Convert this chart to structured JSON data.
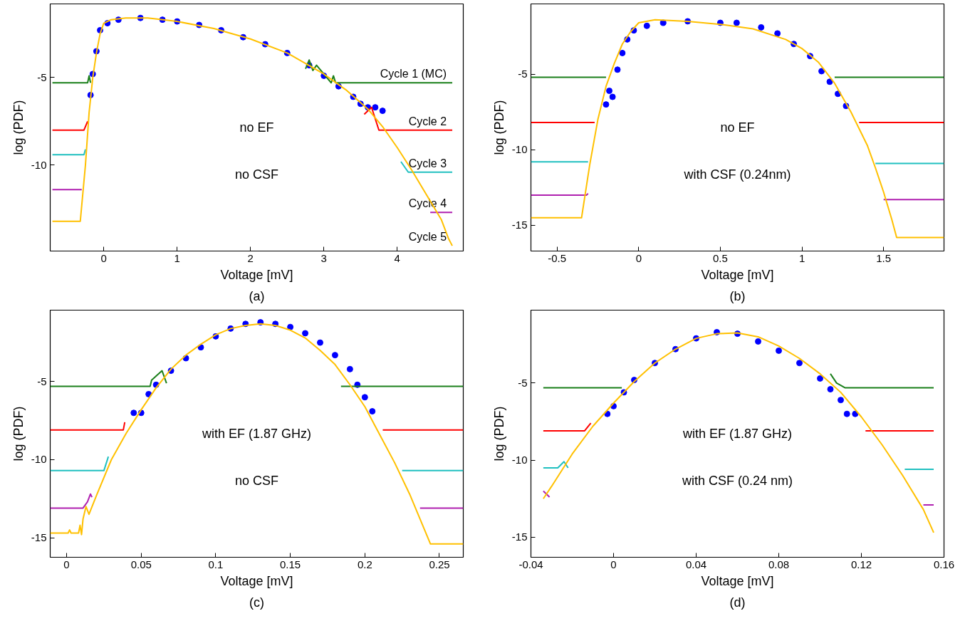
{
  "chart_data": [
    {
      "type": "line",
      "title": "(a)",
      "xlabel": "Voltage [mV]",
      "ylabel": "log (PDF)",
      "annotations": [
        "no EF",
        "no CSF"
      ],
      "xlim": [
        -0.73,
        4.9
      ],
      "ylim": [
        -14.9,
        -0.8
      ],
      "xticks": [
        0,
        1,
        2,
        3,
        4
      ],
      "yticks": [
        -5,
        -10
      ],
      "series": [
        {
          "type": "scatter",
          "marker": "circle",
          "color": "#0000ff",
          "x": [
            -0.18,
            -0.15,
            -0.1,
            -0.05,
            0.05,
            0.2,
            0.5,
            0.8,
            1.0,
            1.3,
            1.6,
            1.9,
            2.2,
            2.5,
            2.8,
            3.0,
            3.2,
            3.4,
            3.5,
            3.6,
            3.7,
            3.8
          ],
          "values": [
            -6,
            -4.8,
            -3.5,
            -2.3,
            -1.9,
            -1.7,
            -1.6,
            -1.7,
            -1.8,
            -2.0,
            -2.3,
            -2.7,
            -3.1,
            -3.6,
            -4.3,
            -4.9,
            -5.5,
            -6.1,
            -6.5,
            -6.7,
            -6.7,
            -6.9
          ]
        },
        {
          "name": "Cycle 1 (MC)",
          "color": "#1a7f1a",
          "x": [
            -0.7,
            -0.22,
            -0.2,
            -0.18,
            1,
            2.75,
            2.8,
            2.85,
            2.9,
            3.1,
            3.13,
            3.16,
            4.75
          ],
          "values": [
            -5.3,
            -5.3,
            -4.9,
            -5.3,
            null,
            -4.5,
            -4.0,
            -4.6,
            -4.3,
            -5.3,
            -4.9,
            -5.3,
            -5.3
          ]
        },
        {
          "name": "Cycle 2",
          "color": "#ff0000",
          "x": [
            -0.7,
            -0.27,
            -0.22,
            1,
            3.55,
            3.65,
            3.75,
            4.75
          ],
          "values": [
            -8,
            -8,
            -7.5,
            null,
            -7.1,
            -6.7,
            -8,
            -8
          ]
        },
        {
          "name": "Cycle 3",
          "color": "#20c0c0",
          "x": [
            -0.7,
            -0.27,
            -0.25,
            1,
            4.05,
            4.15,
            4.75
          ],
          "values": [
            -9.4,
            -9.4,
            -9.1,
            null,
            -9.8,
            -10.4,
            -10.4
          ]
        },
        {
          "name": "Cycle 4",
          "color": "#b020b0",
          "x": [
            -0.7,
            -0.3,
            1,
            4.45,
            4.75
          ],
          "values": [
            -11.4,
            -11.4,
            null,
            -12.7,
            -12.7
          ]
        },
        {
          "name": "Cycle 5",
          "color": "#ffc000",
          "x": [
            -0.7,
            -0.32,
            -0.25,
            -0.2,
            -0.15,
            -0.1,
            -0.05,
            0,
            0.1,
            0.3,
            0.6,
            1,
            1.5,
            2,
            2.5,
            3,
            3.3,
            3.6,
            3.8,
            4,
            4.2,
            4.4,
            4.6,
            4.7,
            4.75
          ],
          "values": [
            -13.2,
            -13.2,
            -10,
            -7,
            -5,
            -3.6,
            -2.5,
            -1.9,
            -1.7,
            -1.6,
            -1.6,
            -1.8,
            -2.2,
            -2.8,
            -3.6,
            -4.8,
            -5.7,
            -6.8,
            -7.8,
            -9,
            -10.3,
            -11.7,
            -13.1,
            -14.2,
            -14.6
          ]
        }
      ]
    },
    {
      "type": "line",
      "title": "(b)",
      "xlabel": "Voltage [mV]",
      "ylabel": "log (PDF)",
      "annotations": [
        "no EF",
        "with CSF (0.24nm)"
      ],
      "xlim": [
        -0.66,
        1.87
      ],
      "ylim": [
        -16.7,
        -0.35
      ],
      "xticks": [
        -0.5,
        0,
        0.5,
        1,
        1.5
      ],
      "yticks": [
        -5,
        -10,
        -15
      ],
      "series": [
        {
          "type": "scatter",
          "marker": "circle",
          "color": "#0000ff",
          "x": [
            -0.2,
            -0.18,
            -0.16,
            -0.13,
            -0.1,
            -0.07,
            -0.03,
            0.05,
            0.15,
            0.3,
            0.5,
            0.6,
            0.75,
            0.85,
            0.95,
            1.05,
            1.12,
            1.17,
            1.22,
            1.27
          ],
          "values": [
            -7,
            -6.1,
            -6.5,
            -4.7,
            -3.6,
            -2.7,
            -2.1,
            -1.8,
            -1.6,
            -1.5,
            -1.6,
            -1.6,
            -1.9,
            -2.3,
            -3,
            -3.8,
            -4.8,
            -5.5,
            -6.3,
            -7.1
          ]
        },
        {
          "color": "#1a7f1a",
          "x": [
            -0.66,
            -0.2,
            0.5,
            1.2,
            1.87
          ],
          "values": [
            -5.2,
            -5.2,
            null,
            -5.2,
            -5.2
          ]
        },
        {
          "color": "#ff0000",
          "x": [
            -0.66,
            -0.27,
            0.5,
            1.35,
            1.87
          ],
          "values": [
            -8.2,
            -8.2,
            null,
            -8.2,
            -8.2
          ]
        },
        {
          "color": "#20c0c0",
          "x": [
            -0.66,
            -0.31,
            0.5,
            1.45,
            1.87
          ],
          "values": [
            -10.8,
            -10.8,
            null,
            -10.9,
            -10.9
          ]
        },
        {
          "color": "#b020b0",
          "x": [
            -0.66,
            -0.32,
            -0.31,
            0.5,
            1.5,
            1.87
          ],
          "values": [
            -13,
            -13,
            -12.9,
            null,
            -13.3,
            -13.3
          ]
        },
        {
          "color": "#ffc000",
          "x": [
            -0.66,
            -0.35,
            -0.3,
            -0.25,
            -0.2,
            -0.15,
            -0.1,
            -0.05,
            0,
            0.1,
            0.3,
            0.5,
            0.7,
            0.9,
            1.0,
            1.1,
            1.2,
            1.3,
            1.4,
            1.45,
            1.5,
            1.55,
            1.58,
            1.87
          ],
          "values": [
            -14.5,
            -14.5,
            -11,
            -8,
            -5.8,
            -4.3,
            -3,
            -2.2,
            -1.6,
            -1.4,
            -1.5,
            -1.7,
            -2,
            -2.7,
            -3.3,
            -4.2,
            -5.6,
            -7.5,
            -9.7,
            -11.2,
            -12.8,
            -14.6,
            -15.8,
            -15.8
          ]
        }
      ]
    },
    {
      "type": "line",
      "title": "(c)",
      "xlabel": "Voltage [mV]",
      "ylabel": "log (PDF)",
      "annotations": [
        "with EF (1.87 GHz)",
        "no CSF"
      ],
      "xlim": [
        -0.011,
        0.266
      ],
      "ylim": [
        -16.25,
        -0.42
      ],
      "xticks": [
        0,
        0.05,
        0.1,
        0.15,
        0.2,
        0.25
      ],
      "yticks": [
        -5,
        -10,
        -15
      ],
      "series": [
        {
          "type": "scatter",
          "marker": "circle",
          "color": "#0000ff",
          "x": [
            0.045,
            0.05,
            0.055,
            0.06,
            0.07,
            0.08,
            0.09,
            0.1,
            0.11,
            0.12,
            0.13,
            0.14,
            0.15,
            0.16,
            0.17,
            0.18,
            0.19,
            0.195,
            0.2,
            0.205
          ],
          "values": [
            -7,
            -7,
            -5.8,
            -5.2,
            -4.3,
            -3.5,
            -2.8,
            -2.1,
            -1.6,
            -1.3,
            -1.2,
            -1.3,
            -1.5,
            -1.9,
            -2.5,
            -3.3,
            -4.2,
            -5.2,
            -6,
            -6.9
          ]
        },
        {
          "color": "#1a7f1a",
          "x": [
            -0.011,
            0.056,
            0.057,
            0.064,
            0.067,
            0.12,
            0.184,
            0.266
          ],
          "values": [
            -5.3,
            -5.3,
            -4.9,
            -4.3,
            -5.1,
            null,
            -5.3,
            -5.3
          ]
        },
        {
          "color": "#ff0000",
          "x": [
            -0.011,
            0.038,
            0.039,
            0.12,
            0.212,
            0.266
          ],
          "values": [
            -8.1,
            -8.1,
            -7.6,
            null,
            -8.1,
            -8.1
          ]
        },
        {
          "color": "#20c0c0",
          "x": [
            -0.011,
            0.025,
            0.028,
            0.12,
            0.225,
            0.266
          ],
          "values": [
            -10.7,
            -10.7,
            -9.8,
            null,
            -10.7,
            -10.7
          ]
        },
        {
          "color": "#b020b0",
          "x": [
            -0.011,
            0.011,
            0.014,
            0.016,
            0.017,
            0.12,
            0.237,
            0.266
          ],
          "values": [
            -13.1,
            -13.1,
            -12.7,
            -12.2,
            -12.4,
            null,
            -13.1,
            -13.1
          ]
        },
        {
          "color": "#ffc000",
          "x": [
            -0.011,
            0.001,
            0.002,
            0.003,
            0.008,
            0.009,
            0.01,
            0.011,
            0.013,
            0.015,
            0.02,
            0.03,
            0.04,
            0.05,
            0.06,
            0.07,
            0.08,
            0.09,
            0.1,
            0.11,
            0.12,
            0.13,
            0.14,
            0.15,
            0.16,
            0.17,
            0.18,
            0.19,
            0.2,
            0.21,
            0.22,
            0.23,
            0.244,
            0.266
          ],
          "values": [
            -14.7,
            -14.7,
            -14.5,
            -14.7,
            -14.7,
            -14.2,
            -14.8,
            -13.8,
            -13,
            -13.5,
            -12.3,
            -10,
            -8.3,
            -6.8,
            -5.4,
            -4.2,
            -3.3,
            -2.6,
            -2,
            -1.6,
            -1.4,
            -1.3,
            -1.4,
            -1.7,
            -2.2,
            -3,
            -3.9,
            -5.2,
            -6.6,
            -8.4,
            -10.2,
            -12.2,
            -15.4,
            -15.4
          ]
        }
      ]
    },
    {
      "type": "line",
      "title": "(d)",
      "xlabel": "Voltage [mV]",
      "ylabel": "log (PDF)",
      "annotations": [
        "with EF (1.87 GHz)",
        "with CSF (0.24 nm)"
      ],
      "xlim": [
        -0.04,
        0.16
      ],
      "ylim": [
        -16.3,
        -0.27
      ],
      "xticks": [
        -0.04,
        0,
        0.04,
        0.08,
        0.12,
        0.16
      ],
      "yticks": [
        -5,
        -10,
        -15
      ],
      "series": [
        {
          "type": "scatter",
          "marker": "circle",
          "color": "#0000ff",
          "x": [
            -0.003,
            0,
            0.005,
            0.01,
            0.02,
            0.03,
            0.04,
            0.05,
            0.06,
            0.07,
            0.08,
            0.09,
            0.1,
            0.105,
            0.11,
            0.113,
            0.117
          ],
          "values": [
            -7,
            -6.5,
            -5.6,
            -4.8,
            -3.7,
            -2.8,
            -2.1,
            -1.7,
            -1.8,
            -2.3,
            -2.9,
            -3.7,
            -4.7,
            -5.4,
            -6.1,
            -7,
            -7
          ]
        },
        {
          "color": "#1a7f1a",
          "x": [
            -0.034,
            0.004,
            0.05,
            0.105,
            0.108,
            0.112,
            0.155
          ],
          "values": [
            -5.3,
            -5.3,
            null,
            -4.4,
            -5.0,
            -5.3,
            -5.3
          ]
        },
        {
          "color": "#ff0000",
          "x": [
            -0.034,
            -0.014,
            -0.011,
            0.05,
            0.122,
            0.155
          ],
          "values": [
            -8.1,
            -8.1,
            -7.6,
            null,
            -8.1,
            -8.1
          ]
        },
        {
          "color": "#20c0c0",
          "x": [
            -0.034,
            -0.027,
            -0.024,
            -0.022,
            0.05,
            0.141,
            0.155
          ],
          "values": [
            -10.5,
            -10.5,
            -10.1,
            -10.5,
            null,
            -10.6,
            -10.6
          ]
        },
        {
          "color": "#b020b0",
          "x": [
            -0.034,
            -0.031,
            0.05,
            0.15,
            0.155
          ],
          "values": [
            -12.0,
            -12.4,
            null,
            -12.9,
            -12.9
          ]
        },
        {
          "color": "#ffc000",
          "x": [
            -0.034,
            -0.03,
            -0.02,
            -0.01,
            0,
            0.01,
            0.02,
            0.03,
            0.04,
            0.05,
            0.06,
            0.07,
            0.08,
            0.09,
            0.1,
            0.11,
            0.12,
            0.13,
            0.14,
            0.15,
            0.155
          ],
          "values": [
            -12.5,
            -11.7,
            -9.6,
            -7.8,
            -6.3,
            -4.9,
            -3.7,
            -2.8,
            -2.1,
            -1.8,
            -1.75,
            -2,
            -2.6,
            -3.4,
            -4.4,
            -5.6,
            -7.2,
            -9,
            -11,
            -13.2,
            -14.7
          ]
        }
      ]
    }
  ]
}
